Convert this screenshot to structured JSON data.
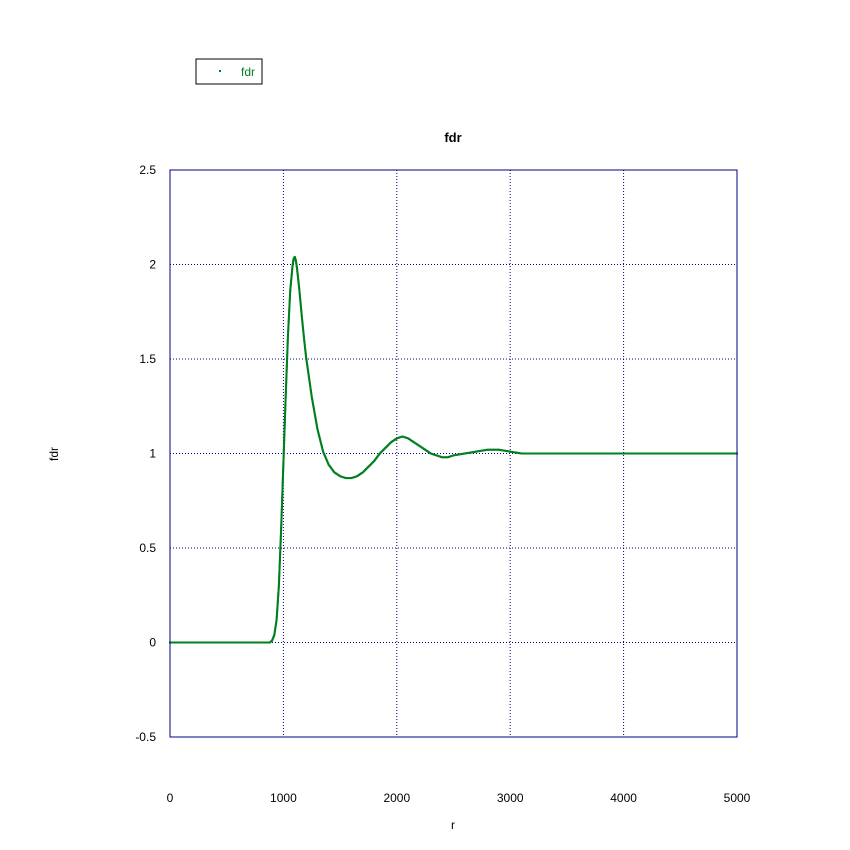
{
  "chart_data": {
    "type": "scatter",
    "title": "fdr",
    "xlabel": "r",
    "ylabel": "fdr",
    "xlim": [
      0,
      5000
    ],
    "ylim": [
      -0.5,
      2.5
    ],
    "xticks": [
      0,
      1000,
      2000,
      3000,
      4000,
      5000
    ],
    "xtick_labels": [
      "0",
      "1000",
      "2000",
      "3000",
      "4000",
      "5000"
    ],
    "yticks": [
      -0.5,
      0,
      0.5,
      1,
      1.5,
      2,
      2.5
    ],
    "ytick_labels": [
      "-0.5",
      "0",
      "0.5",
      "1",
      "1.5",
      "2",
      "2.5"
    ],
    "grid": true,
    "legend_position": "top-left",
    "frame_color": "#00008b",
    "grid_color": "#00008b",
    "series": [
      {
        "name": "fdr",
        "color": "#007f1f",
        "marker": "dot",
        "x": [
          0,
          200,
          400,
          600,
          800,
          880,
          900,
          920,
          940,
          960,
          980,
          1000,
          1020,
          1040,
          1060,
          1080,
          1090,
          1100,
          1110,
          1120,
          1140,
          1160,
          1180,
          1200,
          1250,
          1300,
          1350,
          1400,
          1450,
          1500,
          1550,
          1600,
          1650,
          1700,
          1750,
          1800,
          1850,
          1900,
          1950,
          2000,
          2050,
          2100,
          2150,
          2200,
          2250,
          2300,
          2350,
          2400,
          2450,
          2500,
          2600,
          2700,
          2800,
          2900,
          3000,
          3100,
          3200,
          3300,
          3400,
          3500,
          3600,
          3700,
          3800,
          3900,
          4000,
          4200,
          4400,
          4600,
          4800,
          5000
        ],
        "y": [
          0.0,
          0.0,
          0.0,
          0.0,
          0.0,
          0.0,
          0.01,
          0.04,
          0.12,
          0.3,
          0.6,
          0.95,
          1.3,
          1.62,
          1.86,
          1.99,
          2.03,
          2.04,
          2.02,
          1.98,
          1.87,
          1.74,
          1.62,
          1.51,
          1.3,
          1.13,
          1.01,
          0.94,
          0.9,
          0.88,
          0.87,
          0.87,
          0.88,
          0.9,
          0.93,
          0.96,
          1.0,
          1.03,
          1.06,
          1.08,
          1.09,
          1.08,
          1.06,
          1.04,
          1.02,
          1.0,
          0.99,
          0.98,
          0.98,
          0.99,
          1.0,
          1.01,
          1.02,
          1.02,
          1.01,
          1.0,
          1.0,
          1.0,
          1.0,
          1.0,
          1.0,
          1.0,
          1.0,
          1.0,
          1.0,
          1.0,
          1.0,
          1.0,
          1.0,
          1.0
        ]
      }
    ]
  }
}
